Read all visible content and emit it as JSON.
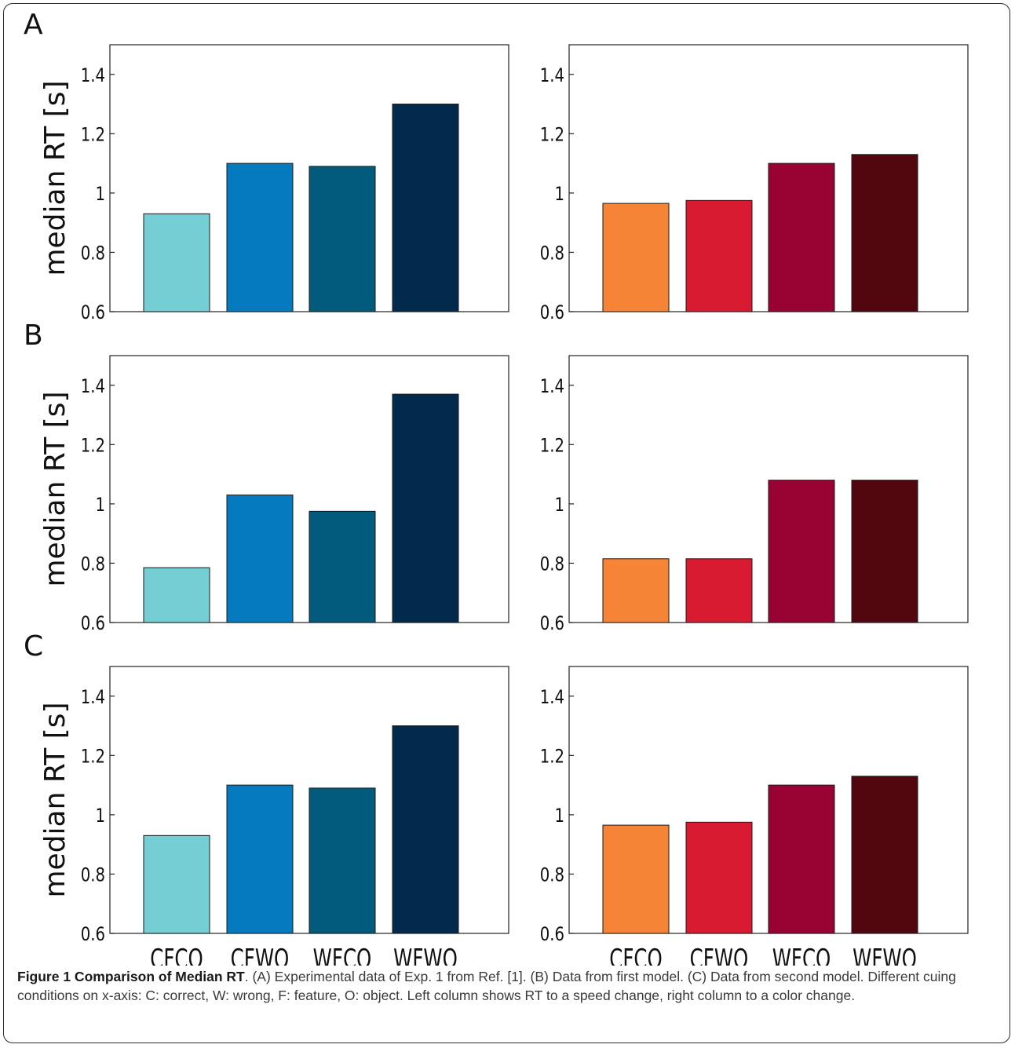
{
  "chart_data": [
    {
      "type": "bar",
      "panel": "A",
      "side": "left",
      "panel_label": "A",
      "ylabel": "median RT [s]",
      "categories": [
        "CFCO",
        "CFWO",
        "WFCO",
        "WFWO"
      ],
      "show_categories": false,
      "values": [
        0.93,
        1.1,
        1.09,
        1.3
      ],
      "colors": [
        "#74ced4",
        "#067abf",
        "#025a7c",
        "#022a4c"
      ],
      "ylim": [
        0.6,
        1.5
      ],
      "yticks": [
        "0.6",
        "0.8",
        "1",
        "1.2",
        "1.4"
      ],
      "ytick_values": [
        0.6,
        0.8,
        1.0,
        1.2,
        1.4
      ],
      "grid": false
    },
    {
      "type": "bar",
      "panel": "A",
      "side": "right",
      "panel_label": "",
      "ylabel": "",
      "categories": [
        "CFCO",
        "CFWO",
        "WFCO",
        "WFWO"
      ],
      "show_categories": false,
      "values": [
        0.965,
        0.975,
        1.1,
        1.13
      ],
      "colors": [
        "#f58437",
        "#d81b30",
        "#990333",
        "#52060d"
      ],
      "ylim": [
        0.6,
        1.5
      ],
      "yticks": [
        "0.6",
        "0.8",
        "1",
        "1.2",
        "1.4"
      ],
      "ytick_values": [
        0.6,
        0.8,
        1.0,
        1.2,
        1.4
      ],
      "grid": false
    },
    {
      "type": "bar",
      "panel": "B",
      "side": "left",
      "panel_label": "B",
      "ylabel": "median RT [s]",
      "categories": [
        "CFCO",
        "CFWO",
        "WFCO",
        "WFWO"
      ],
      "show_categories": false,
      "values": [
        0.785,
        1.03,
        0.975,
        1.37
      ],
      "colors": [
        "#74ced4",
        "#067abf",
        "#025a7c",
        "#022a4c"
      ],
      "ylim": [
        0.6,
        1.5
      ],
      "yticks": [
        "0.6",
        "0.8",
        "1",
        "1.2",
        "1.4"
      ],
      "ytick_values": [
        0.6,
        0.8,
        1.0,
        1.2,
        1.4
      ],
      "grid": false
    },
    {
      "type": "bar",
      "panel": "B",
      "side": "right",
      "panel_label": "",
      "ylabel": "",
      "categories": [
        "CFCO",
        "CFWO",
        "WFCO",
        "WFWO"
      ],
      "show_categories": false,
      "values": [
        0.815,
        0.815,
        1.08,
        1.08
      ],
      "colors": [
        "#f58437",
        "#d81b30",
        "#990333",
        "#52060d"
      ],
      "ylim": [
        0.6,
        1.5
      ],
      "yticks": [
        "0.6",
        "0.8",
        "1",
        "1.2",
        "1.4"
      ],
      "ytick_values": [
        0.6,
        0.8,
        1.0,
        1.2,
        1.4
      ],
      "grid": false
    },
    {
      "type": "bar",
      "panel": "C",
      "side": "left",
      "panel_label": "C",
      "ylabel": "median RT [s]",
      "categories": [
        "CFCO",
        "CFWO",
        "WFCO",
        "WFWO"
      ],
      "show_categories": true,
      "values": [
        0.93,
        1.1,
        1.09,
        1.3
      ],
      "colors": [
        "#74ced4",
        "#067abf",
        "#025a7c",
        "#022a4c"
      ],
      "ylim": [
        0.6,
        1.5
      ],
      "yticks": [
        "0.6",
        "0.8",
        "1",
        "1.2",
        "1.4"
      ],
      "ytick_values": [
        0.6,
        0.8,
        1.0,
        1.2,
        1.4
      ],
      "grid": false
    },
    {
      "type": "bar",
      "panel": "C",
      "side": "right",
      "panel_label": "",
      "ylabel": "",
      "categories": [
        "CFCO",
        "CFWO",
        "WFCO",
        "WFWO"
      ],
      "show_categories": true,
      "values": [
        0.965,
        0.975,
        1.1,
        1.13
      ],
      "colors": [
        "#f58437",
        "#d81b30",
        "#990333",
        "#52060d"
      ],
      "ylim": [
        0.6,
        1.5
      ],
      "yticks": [
        "0.6",
        "0.8",
        "1",
        "1.2",
        "1.4"
      ],
      "ytick_values": [
        0.6,
        0.8,
        1.0,
        1.2,
        1.4
      ],
      "grid": false
    }
  ],
  "caption": {
    "title": "Figure 1 Comparison of Median RT",
    "text": ". (A) Experimental data of Exp. 1 from Ref. [1]. (B) Data from first model. (C) Data from second model. Different cuing conditions on x-axis: C: correct, W: wrong, F: feature, O: object. Left column shows RT to a speed change, right column to a color change."
  }
}
